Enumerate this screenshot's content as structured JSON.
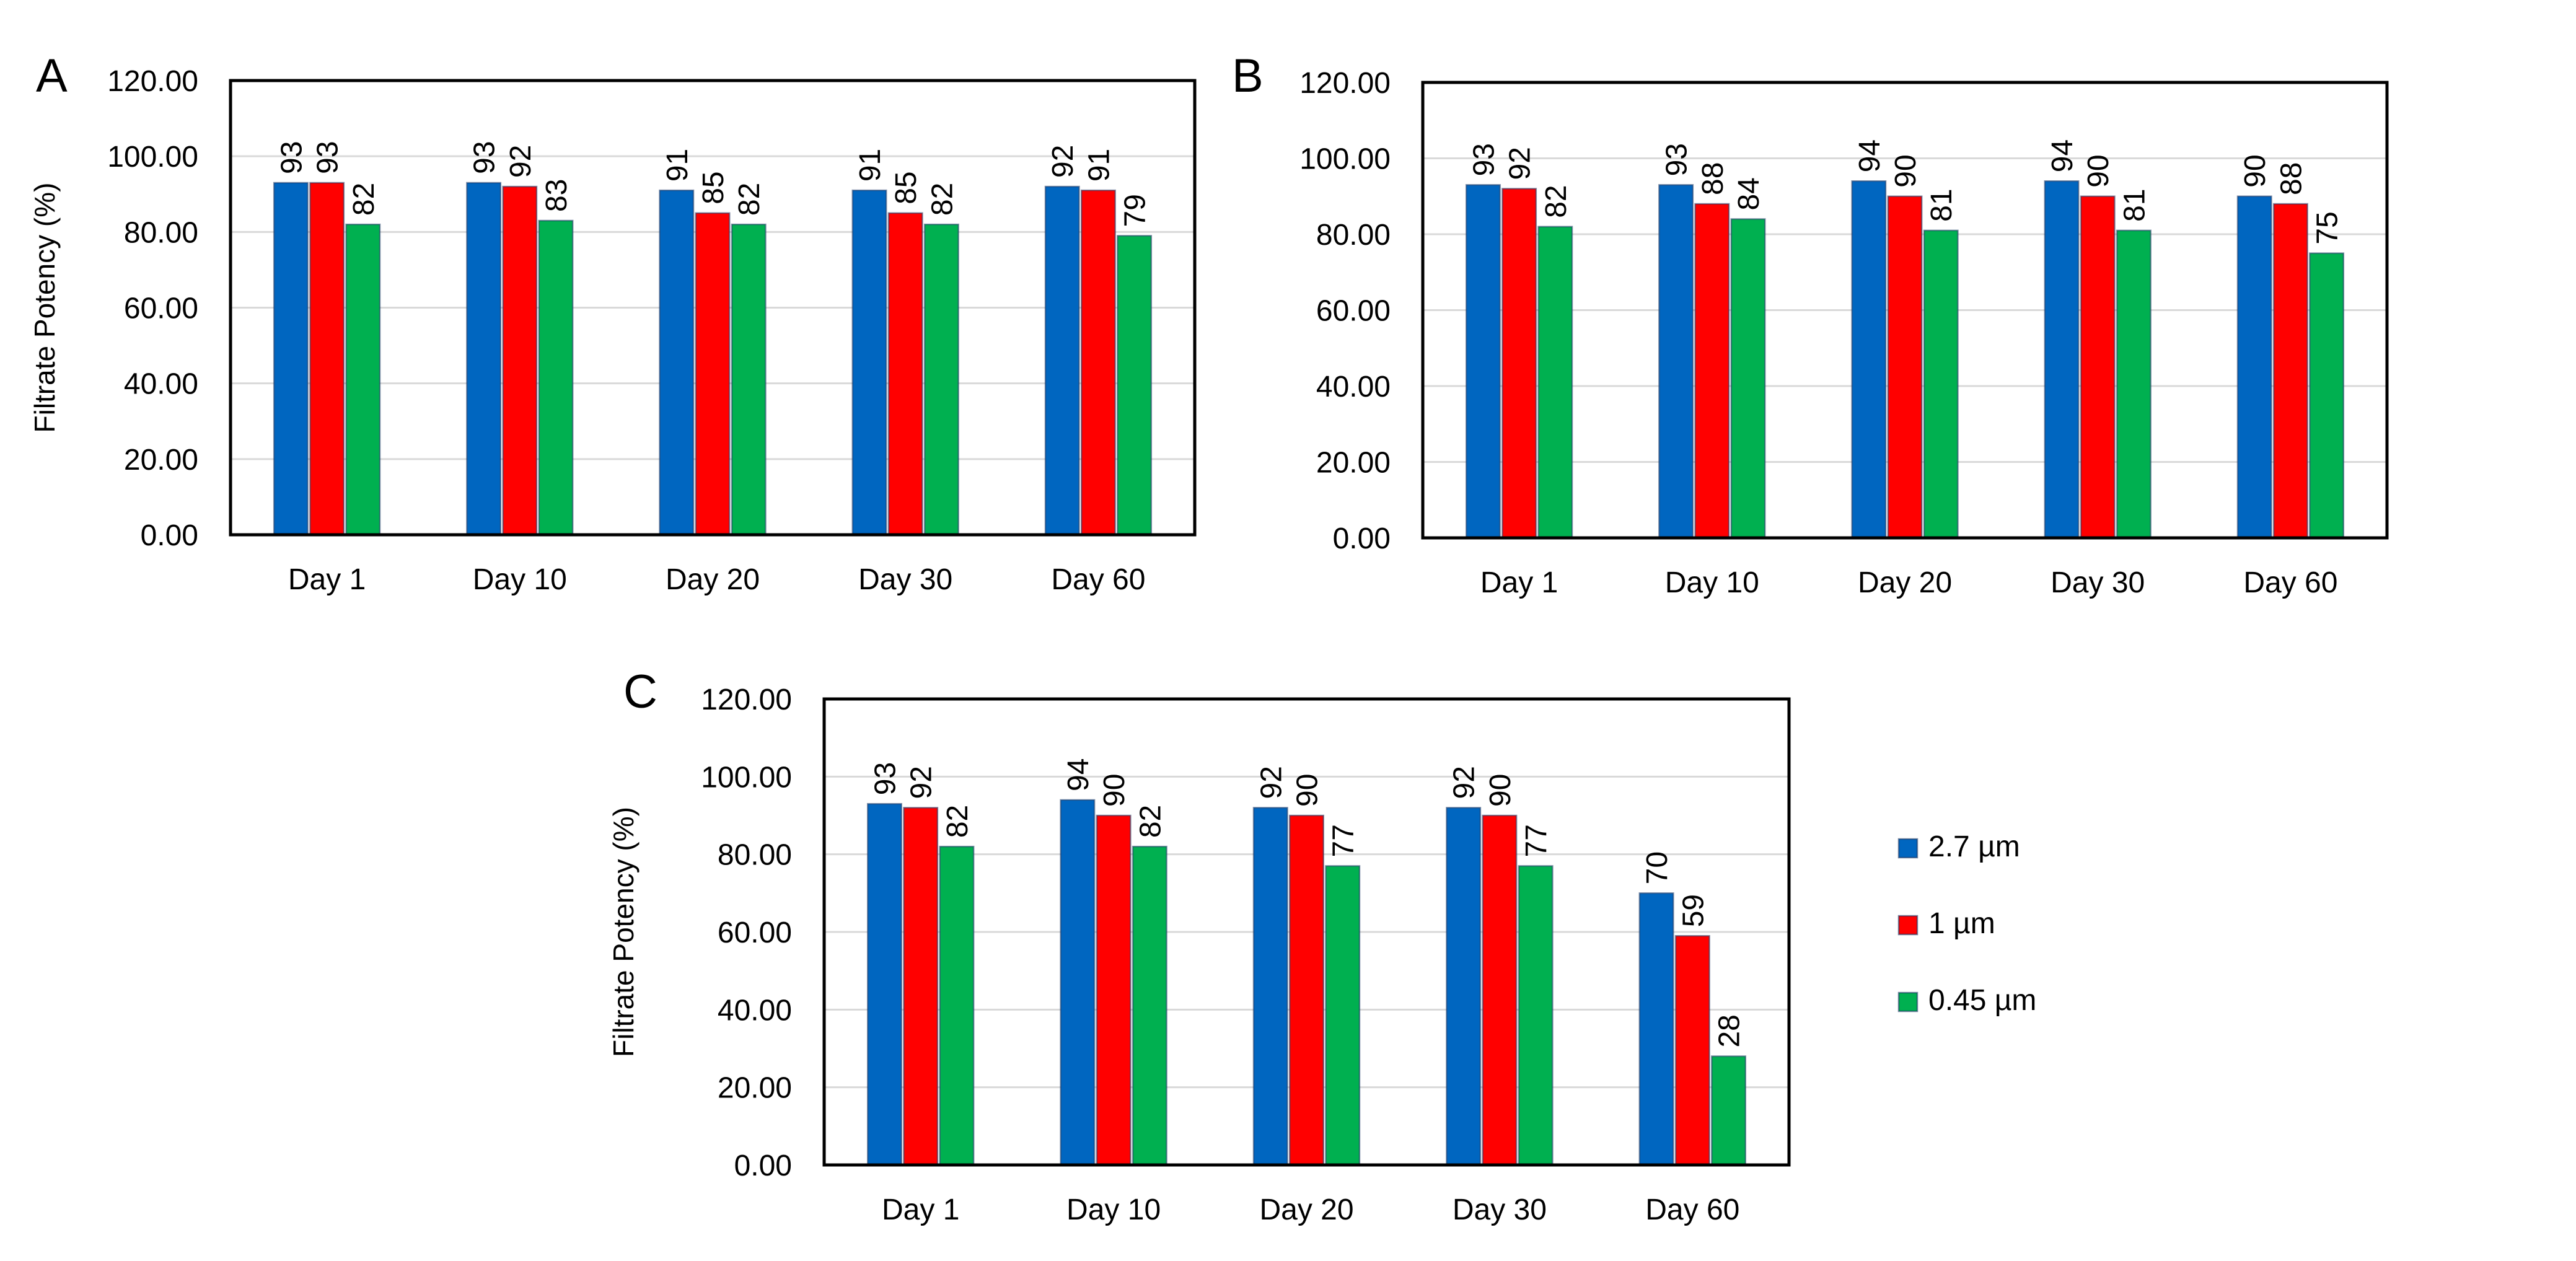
{
  "legend": {
    "items": [
      {
        "label": "2.7 µm",
        "color": "#0066C0"
      },
      {
        "label": "1 µm",
        "color": "#FF0000"
      },
      {
        "label": "0.45  µm",
        "color": "#00B050"
      }
    ]
  },
  "chart_data": [
    {
      "panel_letter": "A",
      "type": "bar",
      "ylabel": "Filtrate Potency (%)",
      "ylim": [
        0,
        120
      ],
      "yticks": [
        "0.00",
        "20.00",
        "40.00",
        "60.00",
        "80.00",
        "100.00",
        "120.00"
      ],
      "categories": [
        "Day 1",
        "Day 10",
        "Day 20",
        "Day 30",
        "Day 60"
      ],
      "series": [
        {
          "name": "2.7 µm",
          "color": "#0066C0",
          "values": [
            93,
            93,
            91,
            91,
            92
          ]
        },
        {
          "name": "1 µm",
          "color": "#FF0000",
          "values": [
            93,
            92,
            85,
            85,
            91
          ]
        },
        {
          "name": "0.45  µm",
          "color": "#00B050",
          "values": [
            82,
            83,
            82,
            82,
            79
          ]
        }
      ],
      "grid": true
    },
    {
      "panel_letter": "B",
      "type": "bar",
      "ylabel": "",
      "ylim": [
        0,
        120
      ],
      "yticks": [
        "0.00",
        "20.00",
        "40.00",
        "60.00",
        "80.00",
        "100.00",
        "120.00"
      ],
      "categories": [
        "Day 1",
        "Day 10",
        "Day 20",
        "Day 30",
        "Day 60"
      ],
      "series": [
        {
          "name": "2.7 µm",
          "color": "#0066C0",
          "values": [
            93,
            93,
            94,
            94,
            90
          ]
        },
        {
          "name": "1 µm",
          "color": "#FF0000",
          "values": [
            92,
            88,
            90,
            90,
            88
          ]
        },
        {
          "name": "0.45  µm",
          "color": "#00B050",
          "values": [
            82,
            84,
            81,
            81,
            75
          ]
        }
      ],
      "grid": true
    },
    {
      "panel_letter": "C",
      "type": "bar",
      "ylabel": "Filtrate Potency (%)",
      "ylim": [
        0,
        120
      ],
      "yticks": [
        "0.00",
        "20.00",
        "40.00",
        "60.00",
        "80.00",
        "100.00",
        "120.00"
      ],
      "categories": [
        "Day 1",
        "Day 10",
        "Day 20",
        "Day 30",
        "Day 60"
      ],
      "series": [
        {
          "name": "2.7 µm",
          "color": "#0066C0",
          "values": [
            93,
            94,
            92,
            92,
            70
          ]
        },
        {
          "name": "1 µm",
          "color": "#FF0000",
          "values": [
            92,
            90,
            90,
            90,
            59
          ]
        },
        {
          "name": "0.45  µm",
          "color": "#00B050",
          "values": [
            82,
            82,
            77,
            77,
            28
          ]
        }
      ],
      "grid": true
    }
  ]
}
